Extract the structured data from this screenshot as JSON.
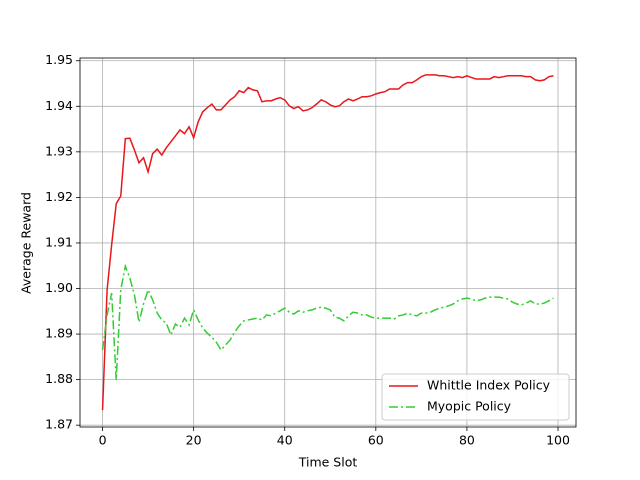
{
  "chart_data": {
    "type": "line",
    "xlabel": "Time Slot",
    "ylabel": "Average Reward",
    "x": [
      0,
      1,
      2,
      3,
      4,
      5,
      6,
      7,
      8,
      9,
      10,
      11,
      12,
      13,
      14,
      15,
      16,
      17,
      18,
      19,
      20,
      21,
      22,
      23,
      24,
      25,
      26,
      27,
      28,
      29,
      30,
      31,
      32,
      33,
      34,
      35,
      36,
      37,
      38,
      39,
      40,
      41,
      42,
      43,
      44,
      45,
      46,
      47,
      48,
      49,
      50,
      51,
      52,
      53,
      54,
      55,
      56,
      57,
      58,
      59,
      60,
      61,
      62,
      63,
      64,
      65,
      66,
      67,
      68,
      69,
      70,
      71,
      72,
      73,
      74,
      75,
      76,
      77,
      78,
      79,
      80,
      81,
      82,
      83,
      84,
      85,
      86,
      87,
      88,
      89,
      90,
      91,
      92,
      93,
      94,
      95,
      96,
      97,
      98,
      99
    ],
    "series": [
      {
        "name": "Whittle Index Policy",
        "color": "#e8171b",
        "linestyle": "solid",
        "values": [
          1.8733,
          1.8997,
          1.9096,
          1.9186,
          1.9203,
          1.9329,
          1.933,
          1.9304,
          1.9276,
          1.9287,
          1.9256,
          1.9296,
          1.9306,
          1.9293,
          1.9309,
          1.9322,
          1.9335,
          1.9348,
          1.934,
          1.9355,
          1.9331,
          1.9366,
          1.9388,
          1.9397,
          1.9405,
          1.9392,
          1.9392,
          1.9403,
          1.9414,
          1.9421,
          1.9434,
          1.943,
          1.9441,
          1.9436,
          1.9434,
          1.941,
          1.9412,
          1.9412,
          1.9416,
          1.9419,
          1.9414,
          1.9401,
          1.9395,
          1.9399,
          1.939,
          1.9392,
          1.9397,
          1.9405,
          1.9414,
          1.941,
          1.9403,
          1.9399,
          1.9401,
          1.941,
          1.9416,
          1.9412,
          1.9416,
          1.9421,
          1.9421,
          1.9423,
          1.9427,
          1.943,
          1.9432,
          1.9438,
          1.9438,
          1.9438,
          1.9447,
          1.9452,
          1.9452,
          1.9458,
          1.9465,
          1.9469,
          1.9469,
          1.9469,
          1.9467,
          1.9467,
          1.9465,
          1.9463,
          1.9465,
          1.9463,
          1.9467,
          1.9463,
          1.946,
          1.946,
          1.946,
          1.946,
          1.9465,
          1.9463,
          1.9465,
          1.9467,
          1.9467,
          1.9467,
          1.9467,
          1.9465,
          1.9465,
          1.9458,
          1.9456,
          1.9458,
          1.9465,
          1.9467
        ]
      },
      {
        "name": "Myopic Policy",
        "color": "#32cd32",
        "linestyle": "dashdot",
        "values": [
          1.8865,
          1.8942,
          1.899,
          1.8799,
          1.8997,
          1.9049,
          1.9023,
          1.8986,
          1.8926,
          1.8966,
          1.8997,
          1.8975,
          1.8946,
          1.8931,
          1.8924,
          1.8898,
          1.8922,
          1.8915,
          1.8935,
          1.892,
          1.8953,
          1.8931,
          1.8913,
          1.8902,
          1.8893,
          1.8882,
          1.8865,
          1.8876,
          1.8887,
          1.8904,
          1.8918,
          1.8929,
          1.8931,
          1.8933,
          1.8935,
          1.8931,
          1.8942,
          1.894,
          1.8946,
          1.8951,
          1.8957,
          1.8948,
          1.8944,
          1.8951,
          1.8948,
          1.8951,
          1.8953,
          1.8957,
          1.8959,
          1.8957,
          1.8953,
          1.8937,
          1.8935,
          1.8929,
          1.894,
          1.8948,
          1.8946,
          1.8942,
          1.8942,
          1.8937,
          1.8935,
          1.8935,
          1.8935,
          1.8935,
          1.8933,
          1.894,
          1.8942,
          1.8946,
          1.8942,
          1.894,
          1.8946,
          1.8946,
          1.8948,
          1.8953,
          1.8957,
          1.8959,
          1.8962,
          1.8966,
          1.8973,
          1.8977,
          1.8979,
          1.8977,
          1.8973,
          1.8975,
          1.8979,
          1.8981,
          1.8981,
          1.8981,
          1.8979,
          1.8977,
          1.897,
          1.8966,
          1.8964,
          1.8968,
          1.8973,
          1.8966,
          1.8966,
          1.8968,
          1.8973,
          1.8979
        ]
      }
    ],
    "xlim": [
      -4.95,
      103.95
    ],
    "ylim": [
      1.8696,
      1.9506
    ],
    "xticks": [
      0,
      20,
      40,
      60,
      80,
      100
    ],
    "yticks": [
      1.87,
      1.88,
      1.89,
      {
        "value": 1.9,
        "label": "1.90"
      },
      1.91,
      1.92,
      1.93,
      1.94,
      1.95
    ],
    "grid": true,
    "legend": "lower right"
  }
}
